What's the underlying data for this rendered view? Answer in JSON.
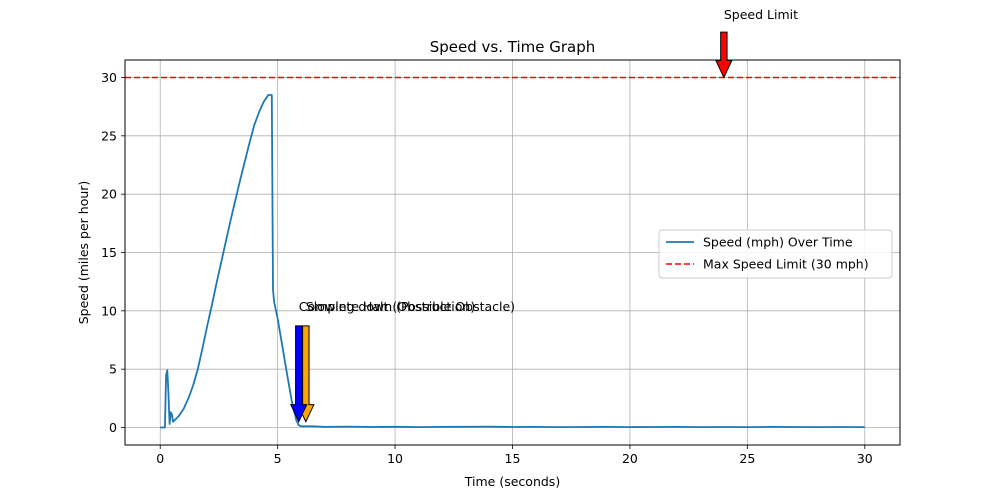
{
  "chart_data": {
    "type": "line",
    "title": "Speed vs. Time Graph",
    "xlabel": "Time (seconds)",
    "ylabel": "Speed (miles per hour)",
    "xlim": [
      -1.5,
      31.5
    ],
    "ylim": [
      -1.5,
      31.5
    ],
    "xticks": [
      0,
      5,
      10,
      15,
      20,
      25,
      30
    ],
    "yticks": [
      0,
      5,
      10,
      15,
      20,
      25,
      30
    ],
    "grid": true,
    "legend_position": "center-right",
    "series": [
      {
        "name": "Speed (mph) Over Time",
        "color": "#1f77b4",
        "style": "solid",
        "x": [
          0,
          0.2,
          0.25,
          0.3,
          0.35,
          0.4,
          0.45,
          0.5,
          0.55,
          0.6,
          0.7,
          0.8,
          1.0,
          1.2,
          1.4,
          1.6,
          1.8,
          2.0,
          2.2,
          2.4,
          2.6,
          2.8,
          3.0,
          3.2,
          3.4,
          3.6,
          3.8,
          4.0,
          4.2,
          4.4,
          4.6,
          4.75,
          4.8,
          4.85,
          5.0,
          5.2,
          5.4,
          5.6,
          5.8,
          5.9,
          6.0,
          6.5,
          7,
          8,
          9,
          10,
          11,
          12,
          13,
          14,
          15,
          16,
          17,
          18,
          19,
          20,
          21,
          22,
          23,
          24,
          25,
          26,
          27,
          28,
          29,
          30
        ],
        "y": [
          0,
          0,
          4.5,
          4.9,
          3.0,
          0.3,
          1.3,
          1.1,
          0.5,
          0.6,
          0.8,
          1.0,
          1.6,
          2.5,
          3.6,
          5.0,
          6.8,
          8.7,
          10.5,
          12.4,
          14.2,
          16.0,
          17.8,
          19.5,
          21.2,
          22.8,
          24.4,
          25.9,
          27.0,
          27.9,
          28.5,
          28.5,
          11.8,
          10.8,
          9.3,
          7.0,
          4.6,
          2.3,
          0.6,
          0.2,
          0.1,
          0.1,
          0.05,
          0.08,
          0.04,
          0.06,
          0.03,
          0.05,
          0.06,
          0.07,
          0.04,
          0.05,
          0.03,
          0.04,
          0.05,
          0.03,
          0.04,
          0.05,
          0.03,
          0.04,
          0.03,
          0.05,
          0.04,
          0.03,
          0.04,
          0.03
        ]
      },
      {
        "name": "Max Speed Limit (30 mph)",
        "color": "#ff0000",
        "style": "dashed",
        "y_constant": 30
      }
    ],
    "annotations": [
      {
        "text": "Speed Limit",
        "xy": [
          24,
          30
        ],
        "xytext": [
          24,
          35
        ],
        "color": "#ff0000"
      },
      {
        "text": "Slowing down (Possible Obstacle)",
        "xy": [
          6.2,
          0.5
        ],
        "xytext": [
          6.2,
          10
        ],
        "color": "#ffa500"
      },
      {
        "text": "Complete Halt (Obstruction)",
        "xy": [
          5.9,
          0.5
        ],
        "xytext": [
          5.9,
          10
        ],
        "color": "#0000ff"
      }
    ]
  }
}
